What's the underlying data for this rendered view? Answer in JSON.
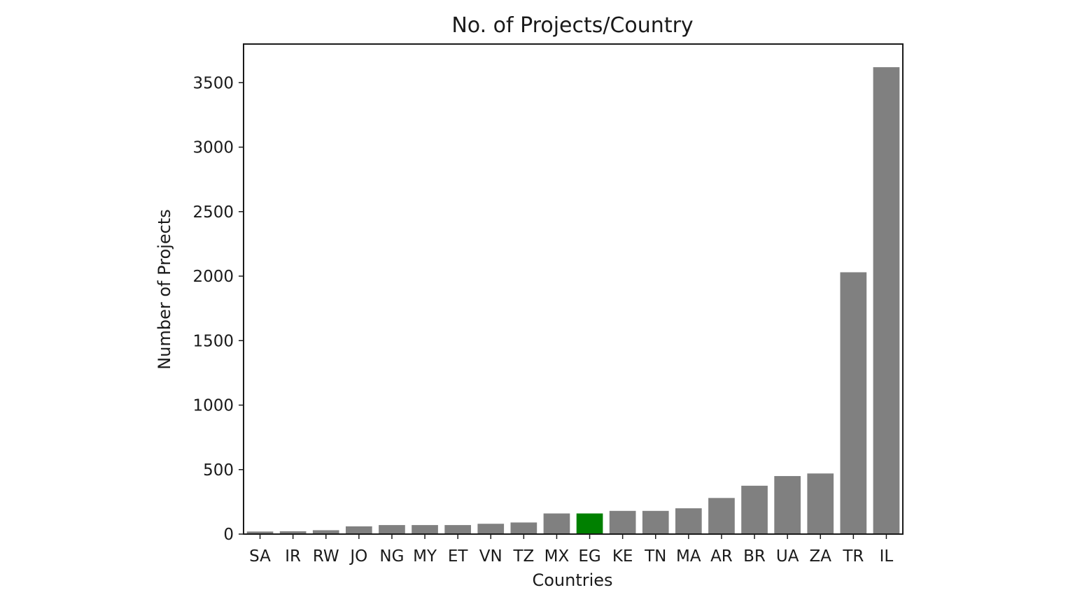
{
  "chart_data": {
    "type": "bar",
    "title": "No. of Projects/Country",
    "xlabel": "Countries",
    "ylabel": "Number of Projects",
    "categories": [
      "SA",
      "IR",
      "RW",
      "JO",
      "NG",
      "MY",
      "ET",
      "VN",
      "TZ",
      "MX",
      "EG",
      "KE",
      "TN",
      "MA",
      "AR",
      "BR",
      "UA",
      "ZA",
      "TR",
      "IL"
    ],
    "values": [
      20,
      22,
      30,
      60,
      70,
      70,
      70,
      80,
      90,
      160,
      160,
      180,
      180,
      200,
      280,
      375,
      450,
      470,
      2030,
      3620
    ],
    "ylim": [
      0,
      3800
    ],
    "yticks": [
      0,
      500,
      1000,
      1500,
      2000,
      2500,
      3000,
      3500
    ],
    "colors": {
      "default": "#808080",
      "highlight": "#008000"
    },
    "highlight_category": "EG",
    "grid": false,
    "legend": "none"
  }
}
